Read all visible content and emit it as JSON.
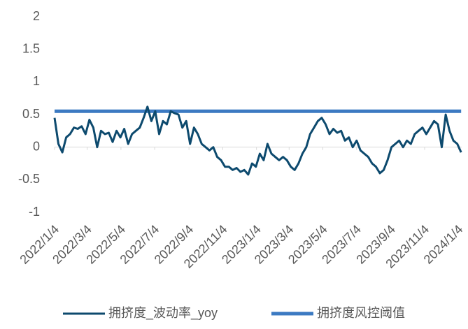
{
  "chart_data": {
    "type": "line",
    "x": [
      "2022/1/4",
      "2022/1/11",
      "2022/1/18",
      "2022/1/25",
      "2022/2/1",
      "2022/2/8",
      "2022/2/15",
      "2022/2/22",
      "2022/3/1",
      "2022/3/8",
      "2022/3/15",
      "2022/3/22",
      "2022/3/29",
      "2022/4/5",
      "2022/4/12",
      "2022/4/19",
      "2022/4/26",
      "2022/5/3",
      "2022/5/10",
      "2022/5/17",
      "2022/5/24",
      "2022/5/31",
      "2022/6/7",
      "2022/6/14",
      "2022/6/21",
      "2022/6/28",
      "2022/7/5",
      "2022/7/12",
      "2022/7/19",
      "2022/7/26",
      "2022/8/2",
      "2022/8/9",
      "2022/8/16",
      "2022/8/23",
      "2022/8/30",
      "2022/9/6",
      "2022/9/13",
      "2022/9/20",
      "2022/9/27",
      "2022/10/4",
      "2022/10/11",
      "2022/10/18",
      "2022/10/25",
      "2022/11/1",
      "2022/11/8",
      "2022/11/15",
      "2022/11/22",
      "2022/11/29",
      "2022/12/6",
      "2022/12/13",
      "2022/12/20",
      "2022/12/27",
      "2023/1/3",
      "2023/1/10",
      "2023/1/17",
      "2023/1/24",
      "2023/1/31",
      "2023/2/7",
      "2023/2/14",
      "2023/2/21",
      "2023/2/28",
      "2023/3/7",
      "2023/3/14",
      "2023/3/21",
      "2023/3/28",
      "2023/4/4",
      "2023/4/11",
      "2023/4/18",
      "2023/4/25",
      "2023/5/2",
      "2023/5/9",
      "2023/5/16",
      "2023/5/23",
      "2023/5/30",
      "2023/6/6",
      "2023/6/13",
      "2023/6/20",
      "2023/6/27",
      "2023/7/4",
      "2023/7/11",
      "2023/7/18",
      "2023/7/25",
      "2023/8/1",
      "2023/8/8",
      "2023/8/15",
      "2023/8/22",
      "2023/8/29",
      "2023/9/5",
      "2023/9/12",
      "2023/9/19",
      "2023/9/26",
      "2023/10/3",
      "2023/10/10",
      "2023/10/17",
      "2023/10/24",
      "2023/10/31",
      "2023/11/7",
      "2023/11/14",
      "2023/11/21",
      "2023/11/28",
      "2023/12/5",
      "2023/12/12",
      "2023/12/19",
      "2023/12/26",
      "2024/1/2",
      "2024/1/9"
    ],
    "series": [
      {
        "name": "拥挤度_波动率_yoy",
        "color": "#0d4a6e",
        "values": [
          0.45,
          0.05,
          -0.08,
          0.15,
          0.2,
          0.3,
          0.28,
          0.32,
          0.2,
          0.42,
          0.3,
          0.0,
          0.25,
          0.2,
          0.22,
          0.08,
          0.25,
          0.15,
          0.28,
          0.05,
          0.2,
          0.25,
          0.3,
          0.45,
          0.62,
          0.4,
          0.55,
          0.2,
          0.4,
          0.35,
          0.55,
          0.52,
          0.5,
          0.3,
          0.4,
          0.05,
          0.3,
          0.2,
          0.05,
          0.0,
          -0.05,
          0.0,
          -0.15,
          -0.2,
          -0.3,
          -0.3,
          -0.35,
          -0.32,
          -0.38,
          -0.35,
          -0.42,
          -0.25,
          -0.3,
          -0.1,
          -0.2,
          0.05,
          -0.1,
          -0.15,
          -0.2,
          -0.15,
          -0.2,
          -0.3,
          -0.35,
          -0.25,
          -0.1,
          0.0,
          0.2,
          0.3,
          0.4,
          0.45,
          0.35,
          0.2,
          0.28,
          0.22,
          0.25,
          0.1,
          0.15,
          0.0,
          0.1,
          -0.05,
          -0.1,
          -0.15,
          -0.25,
          -0.3,
          -0.4,
          -0.35,
          -0.2,
          0.0,
          0.05,
          0.1,
          0.0,
          0.1,
          0.05,
          0.2,
          0.25,
          0.3,
          0.2,
          0.3,
          0.4,
          0.35,
          0.0,
          0.5,
          0.25,
          0.1,
          0.05,
          -0.08
        ]
      },
      {
        "name": "拥挤度风控阈值",
        "color": "#3c7ac2",
        "x": [
          "2022/1/4",
          "2024/1/9"
        ],
        "values": [
          0.55,
          0.55
        ]
      }
    ],
    "xlim": [
      "2022/1/4",
      "2024/1/10"
    ],
    "xticks": [
      "2022/1/4",
      "2022/3/4",
      "2022/5/4",
      "2022/7/4",
      "2022/9/4",
      "2022/11/4",
      "2023/1/4",
      "2023/3/4",
      "2023/5/4",
      "2023/7/4",
      "2023/9/4",
      "2023/11/4",
      "2024/1/4"
    ],
    "ylim": [
      -1,
      2
    ],
    "yticks": [
      2,
      1.5,
      1,
      0.5,
      0,
      -0.5,
      -1
    ]
  }
}
